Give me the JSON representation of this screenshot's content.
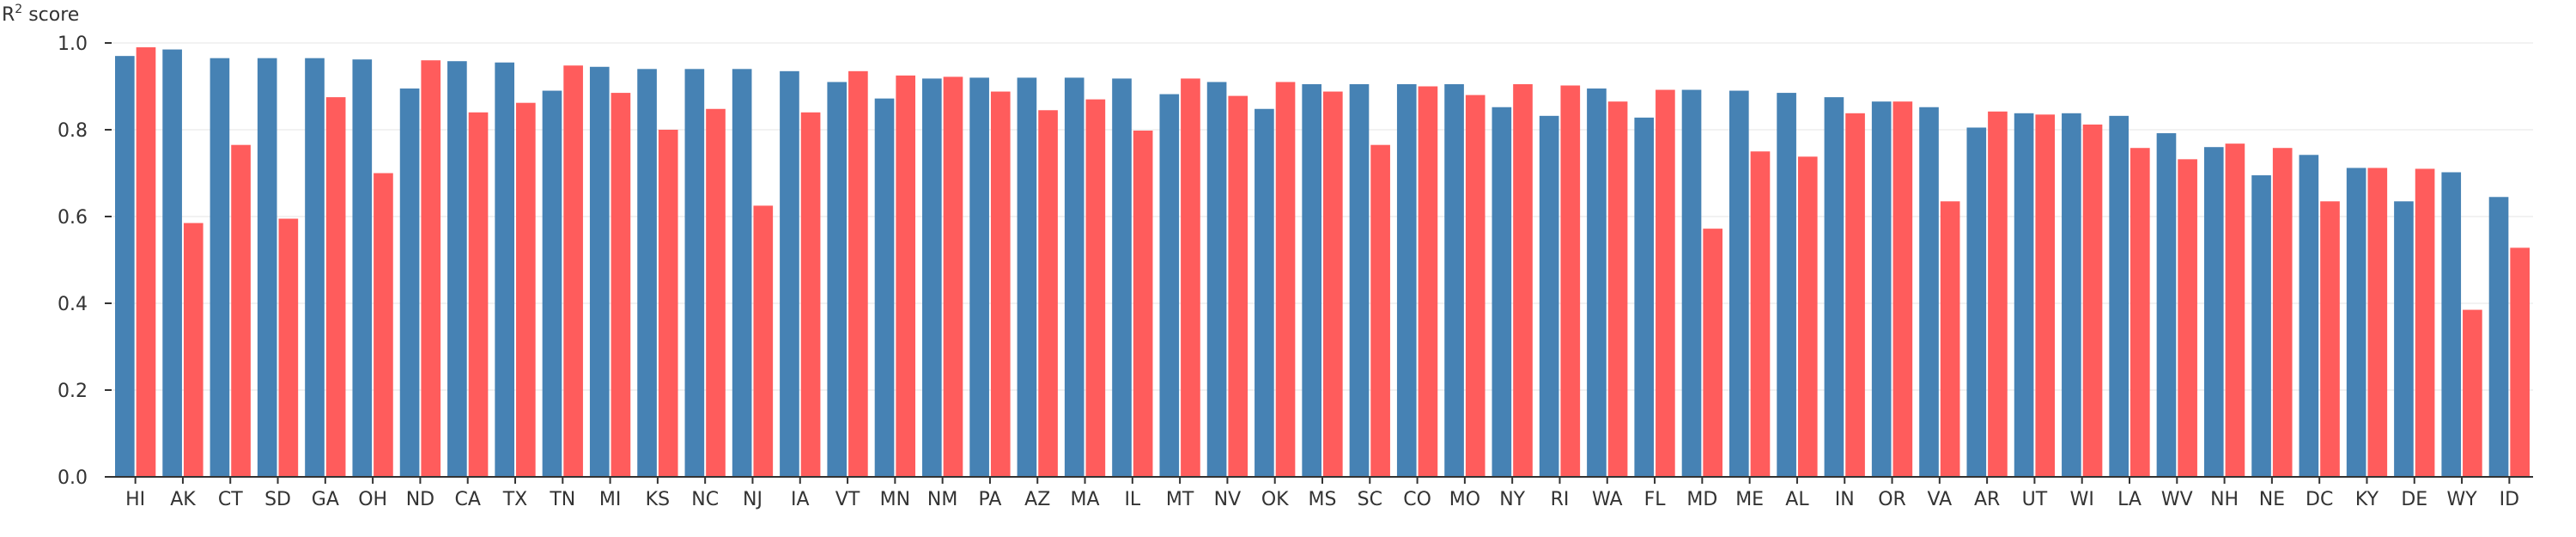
{
  "chart_data": {
    "type": "bar",
    "ylabel": {
      "prefix": "R",
      "superscript": "2",
      "suffix": " score"
    },
    "ylim": [
      0,
      1.0
    ],
    "yticks": [
      "0.0",
      "0.2",
      "0.4",
      "0.6",
      "0.8",
      "1.0"
    ],
    "grid": true,
    "categories": [
      "HI",
      "AK",
      "CT",
      "SD",
      "GA",
      "OH",
      "ND",
      "CA",
      "TX",
      "TN",
      "MI",
      "KS",
      "NC",
      "NJ",
      "IA",
      "VT",
      "MN",
      "NM",
      "PA",
      "AZ",
      "MA",
      "IL",
      "MT",
      "NV",
      "OK",
      "MS",
      "SC",
      "CO",
      "MO",
      "NY",
      "RI",
      "WA",
      "FL",
      "MD",
      "ME",
      "AL",
      "IN",
      "OR",
      "VA",
      "AR",
      "UT",
      "WI",
      "LA",
      "WV",
      "NH",
      "NE",
      "DC",
      "KY",
      "DE",
      "WY",
      "ID"
    ],
    "series": [
      {
        "color": "#4682b4",
        "values": [
          0.97,
          0.985,
          0.965,
          0.965,
          0.965,
          0.962,
          0.895,
          0.958,
          0.955,
          0.89,
          0.945,
          0.94,
          0.94,
          0.94,
          0.935,
          0.91,
          0.872,
          0.918,
          0.92,
          0.92,
          0.92,
          0.918,
          0.882,
          0.91,
          0.848,
          0.905,
          0.905,
          0.905,
          0.905,
          0.852,
          0.832,
          0.895,
          0.828,
          0.892,
          0.89,
          0.885,
          0.875,
          0.865,
          0.852,
          0.805,
          0.838,
          0.838,
          0.832,
          0.792,
          0.76,
          0.695,
          0.742,
          0.712,
          0.635,
          0.702,
          0.645
        ]
      },
      {
        "color": "#ff5c5c",
        "values": [
          0.99,
          0.585,
          0.765,
          0.595,
          0.875,
          0.7,
          0.96,
          0.84,
          0.862,
          0.948,
          0.885,
          0.8,
          0.848,
          0.625,
          0.84,
          0.935,
          0.925,
          0.922,
          0.888,
          0.845,
          0.87,
          0.798,
          0.918,
          0.878,
          0.91,
          0.888,
          0.765,
          0.9,
          0.88,
          0.905,
          0.902,
          0.865,
          0.892,
          0.572,
          0.75,
          0.738,
          0.838,
          0.865,
          0.635,
          0.842,
          0.835,
          0.812,
          0.758,
          0.732,
          0.768,
          0.758,
          0.635,
          0.712,
          0.71,
          0.385,
          0.528
        ]
      }
    ]
  }
}
